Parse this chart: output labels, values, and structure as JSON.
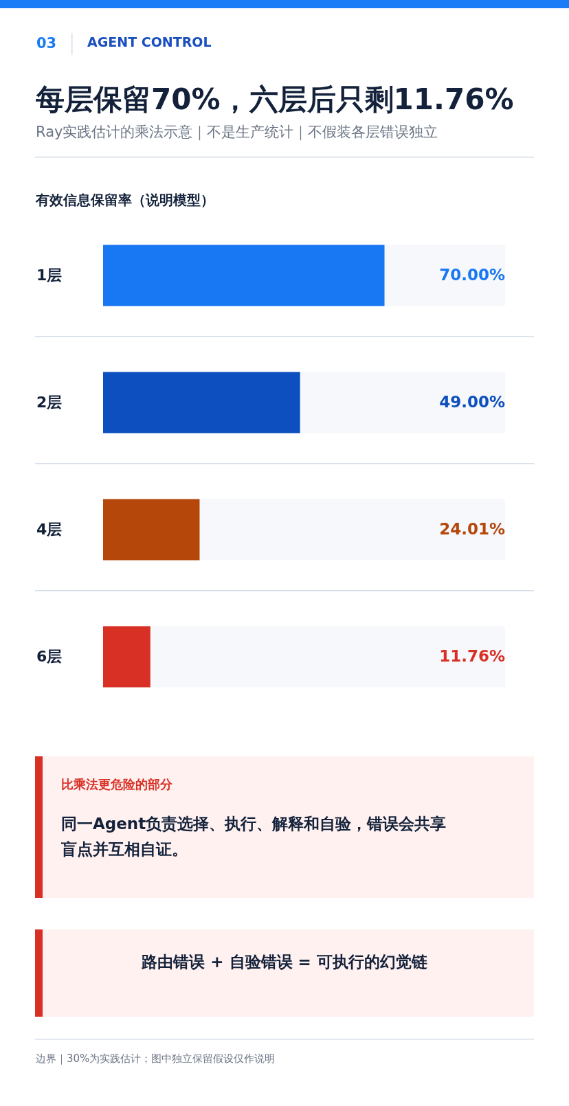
{
  "chart_data": {
    "type": "bar",
    "orientation": "horizontal",
    "title": "每层保留70%，六层后只剩11.76%",
    "subtitle": "Ray实践估计的乘法示意｜不是生产统计｜不假装各层错误独立",
    "categories": [
      "1层",
      "2层",
      "4层",
      "6层"
    ],
    "values": [
      70.0,
      49.0,
      24.01,
      11.76
    ],
    "colors": [
      "#1877f2",
      "#0d4fbf",
      "#b5470b",
      "#d93025"
    ],
    "value_labels": [
      "70.00%",
      "49.00%",
      "24.01%",
      "11.76%"
    ],
    "xlim": [
      0,
      100
    ],
    "annotations": [
      "03",
      "AGENT CONTROL",
      "有效信息保留率（说明模型）",
      "比乘法更危险的部分",
      "同一Agent负责选择、执行、解释和自验，错误会共享盲点并互相自证。",
      "路由错误 + 自验错误 = 可执行的幻觉链",
      "边界｜30%为实践估计；图中独立保留假设仅作说明"
    ]
  }
}
